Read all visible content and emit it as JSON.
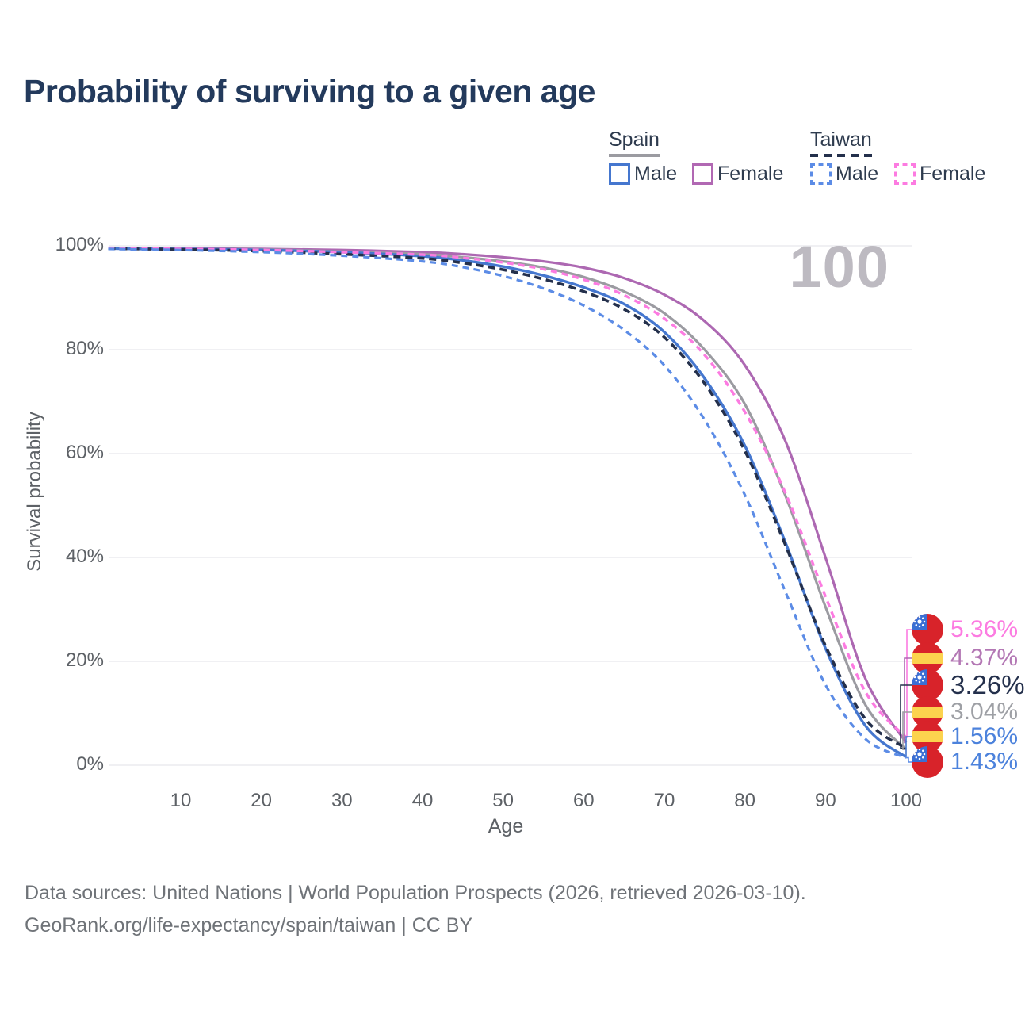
{
  "title": "Probability of surviving to a given age",
  "watermark": "100",
  "legend": {
    "groups": [
      {
        "name": "Spain",
        "line_style": "solid",
        "header_color": "#9b9ba1",
        "items": [
          {
            "label": "Male",
            "color": "#4577cf"
          },
          {
            "label": "Female",
            "color": "#b168b3"
          }
        ]
      },
      {
        "name": "Taiwan",
        "line_style": "dashed",
        "header_color": "#24304c",
        "items": [
          {
            "label": "Male",
            "color": "#5c8ce6"
          },
          {
            "label": "Female",
            "color": "#fc7be1"
          }
        ]
      }
    ]
  },
  "axis": {
    "x_label": "Age",
    "y_label": "Survival probability"
  },
  "chart_data": {
    "type": "line",
    "title": "Probability of surviving to a given age",
    "xlabel": "Age",
    "ylabel": "Survival probability",
    "xlim": [
      1,
      100
    ],
    "ylim": [
      0,
      100
    ],
    "x_ticks": [
      10,
      20,
      30,
      40,
      50,
      60,
      70,
      80,
      90,
      100
    ],
    "y_ticks": [
      0,
      20,
      40,
      60,
      80,
      100
    ],
    "y_tick_suffix": "%",
    "grid": "horizontal",
    "legend_position": "top-right",
    "annotation": "100",
    "ages": [
      1,
      5,
      10,
      20,
      30,
      40,
      45,
      50,
      55,
      60,
      65,
      70,
      75,
      80,
      85,
      90,
      95,
      100
    ],
    "draw_order": [
      "spain_female",
      "spain_both",
      "spain_male",
      "taiwan_both",
      "taiwan_female",
      "taiwan_male"
    ],
    "series": [
      {
        "id": "taiwan_female",
        "name": "Taiwan Female",
        "country": "taiwan",
        "sex": "Female",
        "color": "#fc7be1",
        "label_color": "#fc7be1",
        "dashed": true,
        "dash": "8 6",
        "width": 3.4,
        "values": [
          99.6,
          99.5,
          99.4,
          99.2,
          98.8,
          98.3,
          97.7,
          96.8,
          95.5,
          93.5,
          90.5,
          86.0,
          79.0,
          68.0,
          52.5,
          32.5,
          14.0,
          5.36
        ],
        "end_label": "5.36%",
        "label_y": 794,
        "leader_x": 1144,
        "emphasis": false
      },
      {
        "id": "spain_female",
        "name": "Spain Female",
        "country": "spain",
        "sex": "Female",
        "color": "#ad68b2",
        "label_color": "#b377b4",
        "dashed": false,
        "dash": "",
        "width": 3.2,
        "values": [
          99.6,
          99.5,
          99.5,
          99.4,
          99.2,
          98.8,
          98.4,
          97.8,
          97.0,
          95.8,
          93.8,
          90.6,
          85.5,
          77.0,
          62.5,
          40.0,
          16.5,
          4.37
        ],
        "end_label": "4.37%",
        "label_y": 830,
        "leader_x": 1141,
        "emphasis": false
      },
      {
        "id": "taiwan_both",
        "name": "Taiwan",
        "country": "taiwan",
        "sex": "Both",
        "color": "#24304c",
        "label_color": "#24304c",
        "dashed": true,
        "dash": "9 6",
        "width": 3.6,
        "values": [
          99.5,
          99.4,
          99.3,
          99.0,
          98.4,
          97.6,
          96.7,
          95.4,
          93.6,
          91.2,
          87.8,
          82.4,
          73.5,
          60.5,
          42.5,
          23.0,
          8.8,
          3.26
        ],
        "end_label": "3.26%",
        "label_y": 864,
        "leader_x": 1136,
        "emphasis": true
      },
      {
        "id": "spain_both",
        "name": "Spain",
        "country": "spain",
        "sex": "Both",
        "color": "#9b9ba1",
        "label_color": "#9ea0a5",
        "dashed": false,
        "dash": "",
        "width": 3.2,
        "values": [
          99.6,
          99.5,
          99.4,
          99.3,
          98.9,
          98.4,
          97.8,
          97.0,
          95.8,
          94.0,
          91.2,
          87.0,
          80.0,
          69.5,
          52.0,
          30.5,
          11.5,
          3.04
        ],
        "end_label": "3.04%",
        "label_y": 898,
        "leader_x": 1139,
        "emphasis": false
      },
      {
        "id": "spain_male",
        "name": "Spain Male",
        "country": "spain",
        "sex": "Male",
        "color": "#4577cf",
        "label_color": "#4c82dc",
        "dashed": false,
        "dash": "",
        "width": 3.4,
        "values": [
          99.5,
          99.4,
          99.4,
          99.2,
          98.8,
          98.0,
          97.2,
          96.0,
          94.3,
          92.0,
          88.8,
          83.4,
          74.5,
          61.5,
          43.0,
          22.5,
          7.5,
          1.56
        ],
        "end_label": "1.56%",
        "label_y": 929,
        "leader_x": 1143,
        "emphasis": false
      },
      {
        "id": "taiwan_male",
        "name": "Taiwan Male",
        "country": "taiwan",
        "sex": "Male",
        "color": "#5c8ce6",
        "label_color": "#4c82dc",
        "dashed": true,
        "dash": "8 6",
        "width": 3.2,
        "values": [
          99.4,
          99.3,
          99.2,
          98.8,
          98.1,
          97.0,
          95.9,
          94.2,
          91.8,
          88.5,
          83.8,
          77.0,
          66.5,
          52.0,
          33.5,
          15.5,
          5.0,
          1.43
        ],
        "end_label": "1.43%",
        "label_y": 961,
        "leader_x": 1146,
        "emphasis": false
      }
    ],
    "flag_colors": {
      "spain_red": "#d8232a",
      "spain_yellow": "#fcd34e",
      "taiwan_red": "#d8232a",
      "taiwan_blue": "#3b6fd4",
      "taiwan_sun": "#ffffff"
    },
    "gridline_color": "#e8e8ec"
  },
  "footer": {
    "line1": "Data sources: United Nations | World Population Prospects (2026, retrieved 2026-03-10).",
    "line2": "GeoRank.org/life-expectancy/spain/taiwan | CC BY"
  }
}
